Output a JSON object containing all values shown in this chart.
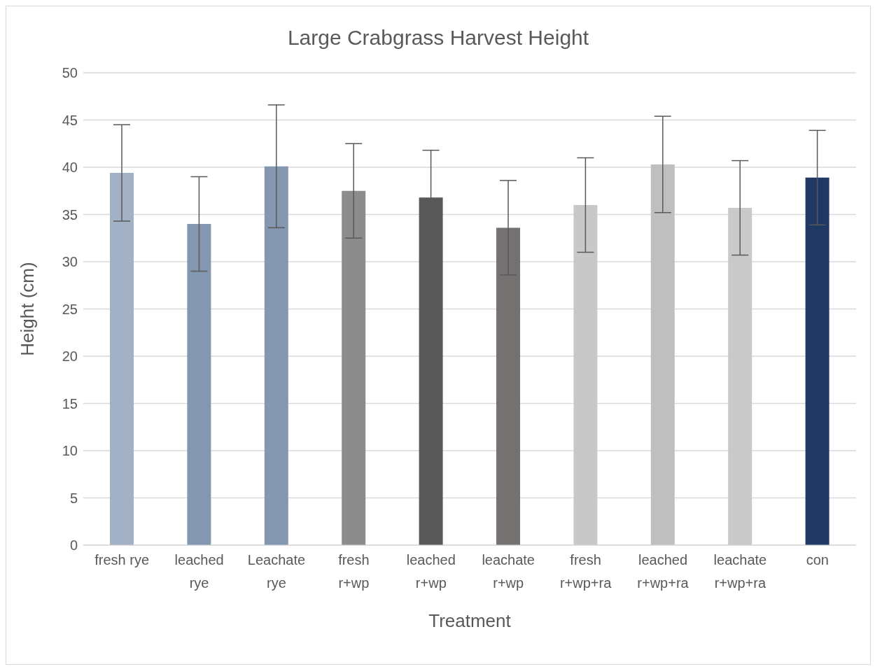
{
  "chart_data": {
    "type": "bar",
    "title": "Large Crabgrass Harvest Height",
    "xlabel": "Treatment",
    "ylabel": "Height (cm)",
    "categories": [
      "fresh rye",
      "leached rye",
      "Leachate rye",
      "fresh r+wp",
      "leached r+wp",
      "leachate r+wp",
      "fresh r+wp+ra",
      "leached r+wp+ra",
      "leachate r+wp+ra",
      "con"
    ],
    "values": [
      39.4,
      34.0,
      40.1,
      37.5,
      36.8,
      33.6,
      36.0,
      40.3,
      35.7,
      38.9
    ],
    "errors": [
      5.1,
      5.0,
      6.5,
      5.0,
      5.0,
      5.0,
      5.0,
      5.1,
      5.0,
      5.0
    ],
    "colors": [
      "#a3b1c6",
      "#8497b0",
      "#8497b0",
      "#8c8c8c",
      "#595959",
      "#767171",
      "#c8c8c8",
      "#bfbfbf",
      "#c9c9c9",
      "#1f3864"
    ],
    "ylim": [
      0,
      50
    ],
    "yticks": [
      0,
      5,
      10,
      15,
      20,
      25,
      30,
      35,
      40,
      45,
      50
    ],
    "grid": "y"
  }
}
